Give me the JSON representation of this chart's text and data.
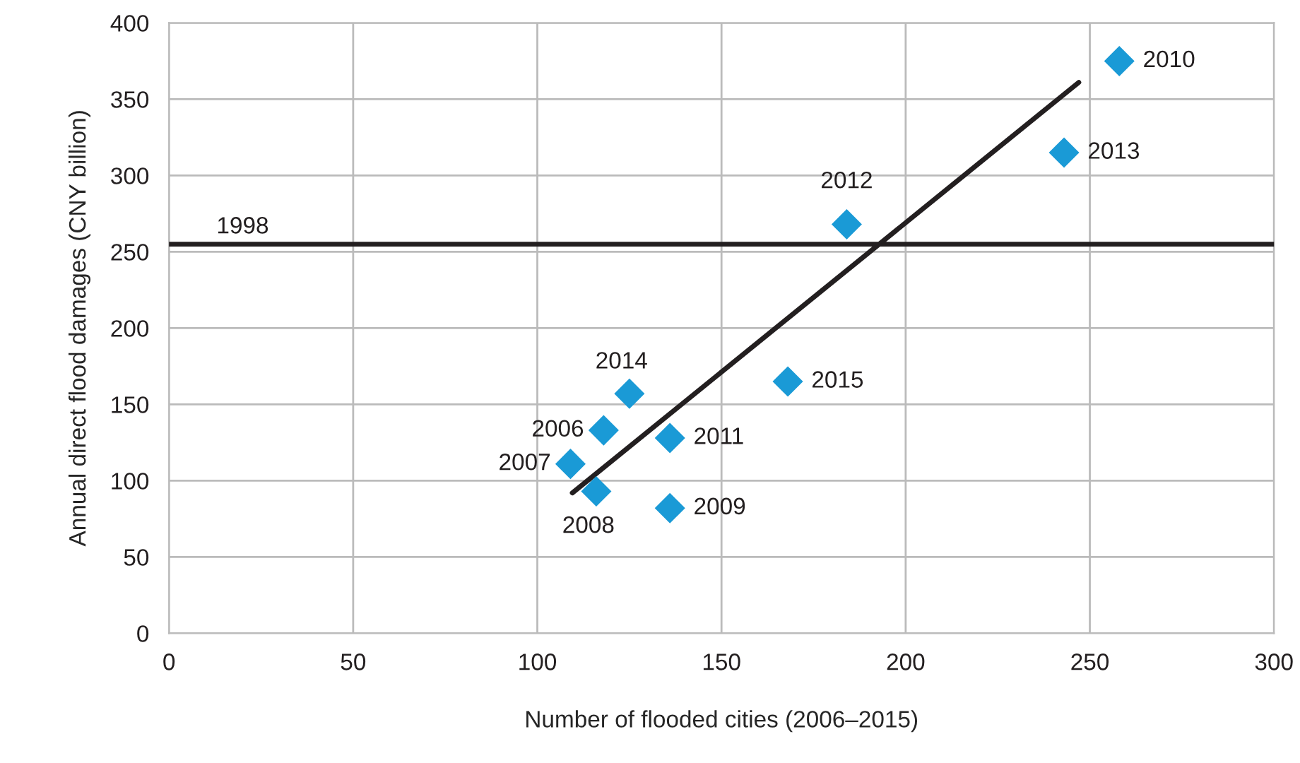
{
  "chart_data": {
    "type": "scatter",
    "xlabel": "Number of flooded cities (2006–2015)",
    "ylabel": "Annual direct flood damages (CNY billion)",
    "series": [
      {
        "type": "scatter",
        "color": "#1a9ad6",
        "marker": "diamond",
        "x": [
          258,
          243,
          184,
          168,
          125,
          118,
          136,
          109,
          116,
          136
        ],
        "values": [
          375,
          315,
          268,
          165,
          157,
          133,
          128,
          111,
          93,
          82
        ]
      },
      {
        "type": "line",
        "color": "#231f20",
        "line_style": "solid",
        "x": [
          109.5,
          247
        ],
        "values": [
          92,
          361
        ]
      }
    ],
    "ref_lines": [
      {
        "axis": "y",
        "value": 255,
        "color": "#231f20"
      }
    ],
    "annotations": [
      {
        "text": "2010",
        "x": 258,
        "y": 375
      },
      {
        "text": "2013",
        "x": 243,
        "y": 315
      },
      {
        "text": "2012",
        "x": 184,
        "y": 268
      },
      {
        "text": "2015",
        "x": 168,
        "y": 165
      },
      {
        "text": "2014",
        "x": 125,
        "y": 157
      },
      {
        "text": "2006",
        "x": 118,
        "y": 133
      },
      {
        "text": "2011",
        "x": 136,
        "y": 128
      },
      {
        "text": "2007",
        "x": 109,
        "y": 111
      },
      {
        "text": "2008",
        "x": 116,
        "y": 93
      },
      {
        "text": "2009",
        "x": 136,
        "y": 82
      },
      {
        "text": "1998",
        "x": 20,
        "y": 255
      }
    ],
    "xlim": [
      0,
      300
    ],
    "xticks": [
      0,
      50,
      100,
      150,
      200,
      250,
      300
    ],
    "ylim": [
      0,
      400
    ],
    "yticks": [
      0,
      50,
      100,
      150,
      200,
      250,
      300,
      350,
      400
    ],
    "grid": true
  }
}
